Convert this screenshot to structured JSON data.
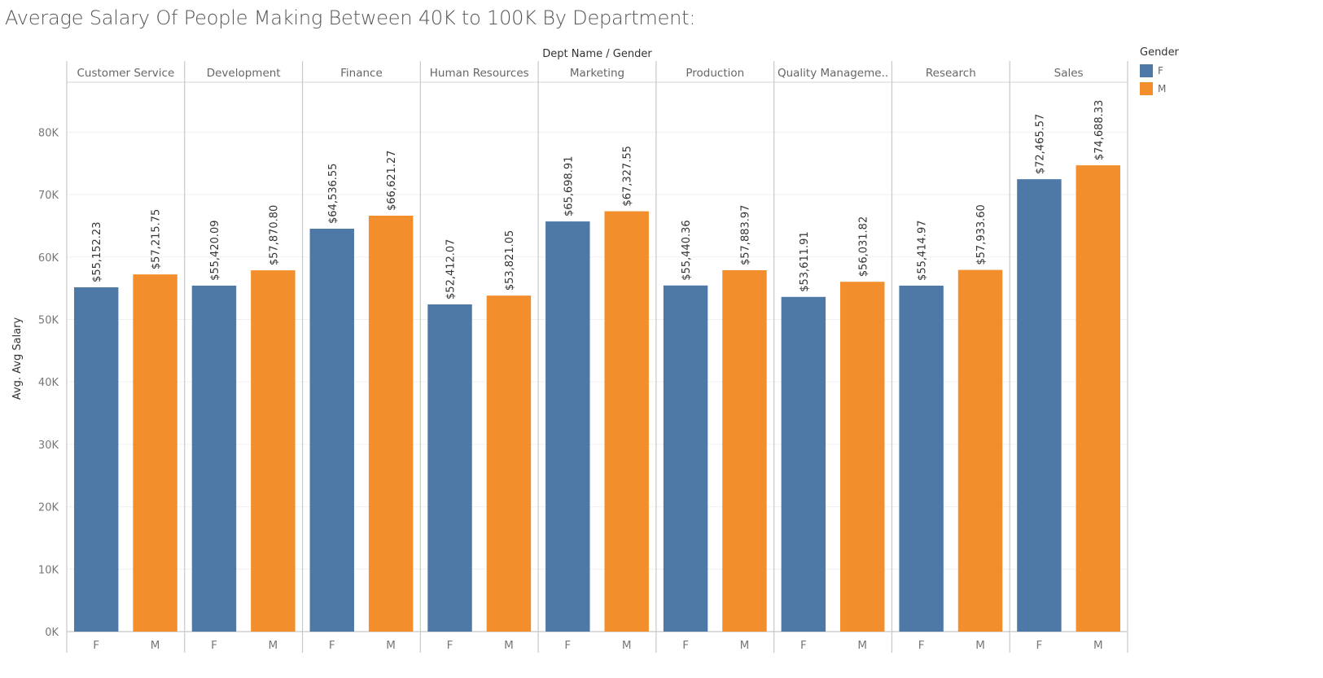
{
  "page": {
    "title": "Average Salary Of People Making Between 40K to 100K By Department:"
  },
  "legend": {
    "title": "Gender",
    "items": [
      {
        "label": "F",
        "color": "#4e79a7"
      },
      {
        "label": "M",
        "color": "#f28e2b"
      }
    ]
  },
  "chart_data": {
    "type": "bar",
    "header": "Dept Name  /  Gender",
    "ylabel": "Avg. Avg Salary",
    "xlabel": "",
    "ylim": [
      0,
      88000
    ],
    "yticks": [
      0,
      10000,
      20000,
      30000,
      40000,
      50000,
      60000,
      70000,
      80000
    ],
    "ytick_labels": [
      "0K",
      "10K",
      "20K",
      "30K",
      "40K",
      "50K",
      "60K",
      "70K",
      "80K"
    ],
    "grid": true,
    "legend_placement": "top-right",
    "subcategories": [
      "F",
      "M"
    ],
    "categories": [
      "Customer Service",
      "Development",
      "Finance",
      "Human Resources",
      "Marketing",
      "Production",
      "Quality Manageme..",
      "Research",
      "Sales"
    ],
    "series": [
      {
        "name": "F",
        "color": "#4e79a7",
        "values": [
          55152.23,
          55420.09,
          64536.55,
          52412.07,
          65698.91,
          55440.36,
          53611.91,
          55414.97,
          72465.57
        ],
        "labels": [
          "$55,152.23",
          "$55,420.09",
          "$64,536.55",
          "$52,412.07",
          "$65,698.91",
          "$55,440.36",
          "$53,611.91",
          "$55,414.97",
          "$72,465.57"
        ]
      },
      {
        "name": "M",
        "color": "#f28e2b",
        "values": [
          57215.75,
          57870.8,
          66621.27,
          53821.05,
          67327.55,
          57883.97,
          56031.82,
          57933.6,
          74688.33
        ],
        "labels": [
          "$57,215.75",
          "$57,870.80",
          "$66,621.27",
          "$53,821.05",
          "$67,327.55",
          "$57,883.97",
          "$56,031.82",
          "$57,933.60",
          "$74,688.33"
        ]
      }
    ]
  }
}
